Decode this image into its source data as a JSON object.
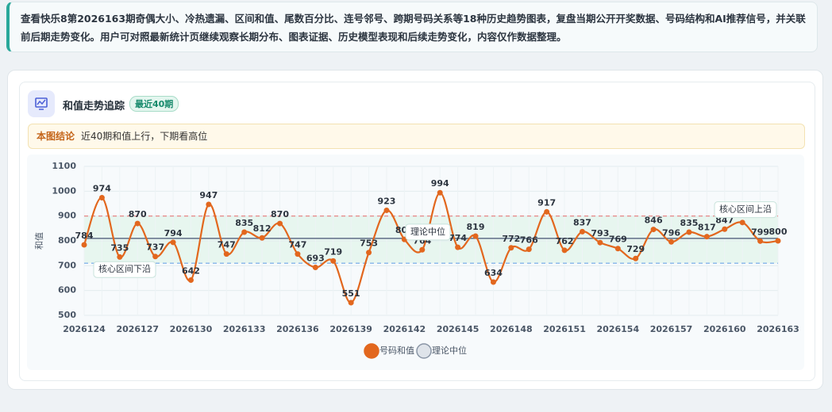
{
  "banner": {
    "text": "查看快乐8第2026163期奇偶大小、冷热遗漏、区间和值、尾数百分比、连号邻号、跨期号码关系等18种历史趋势图表，复盘当期公开开奖数据、号码结构和AI推荐信号，并关联前后期走势变化。用户可对照最新统计页继续观察长期分布、图表证据、历史模型表现和后续走势变化，内容仅作数据整理。"
  },
  "card": {
    "title": "和值走势追踪",
    "badge": "最近40期",
    "conclusion_label": "本图结论",
    "conclusion": "近40期和值上行，下期看高位"
  },
  "chart_data": {
    "type": "line",
    "ylabel": "和值",
    "x": [
      "2026124",
      null,
      null,
      "2026127",
      null,
      null,
      "2026130",
      null,
      null,
      "2026133",
      null,
      null,
      "2026136",
      null,
      null,
      "2026139",
      null,
      null,
      "2026142",
      null,
      null,
      "2026145",
      null,
      null,
      "2026148",
      null,
      null,
      "2026151",
      null,
      null,
      "2026154",
      null,
      null,
      "2026157",
      null,
      null,
      "2026160",
      null,
      null,
      "2026163"
    ],
    "series": [
      {
        "name": "号码和值",
        "color": "#e2671e",
        "values": [
          784,
          974,
          735,
          870,
          737,
          794,
          642,
          947,
          747,
          835,
          812,
          870,
          747,
          693,
          719,
          551,
          753,
          923,
          806,
          764,
          994,
          774,
          819,
          634,
          772,
          766,
          917,
          762,
          837,
          793,
          769,
          729,
          846,
          796,
          835,
          817,
          847,
          874,
          799,
          800
        ]
      }
    ],
    "reference_lines": [
      {
        "name": "理论中位",
        "value": 810,
        "color": "#5f6d86"
      },
      {
        "name": "核心区间上沿",
        "value": 900,
        "color": "#e57a7a"
      },
      {
        "name": "核心区间下沿",
        "value": 710,
        "color": "#6fa6e6"
      }
    ],
    "ylim": [
      500,
      1100
    ],
    "yticks": [
      500,
      600,
      700,
      800,
      900,
      1000,
      1100
    ],
    "grid": true
  }
}
